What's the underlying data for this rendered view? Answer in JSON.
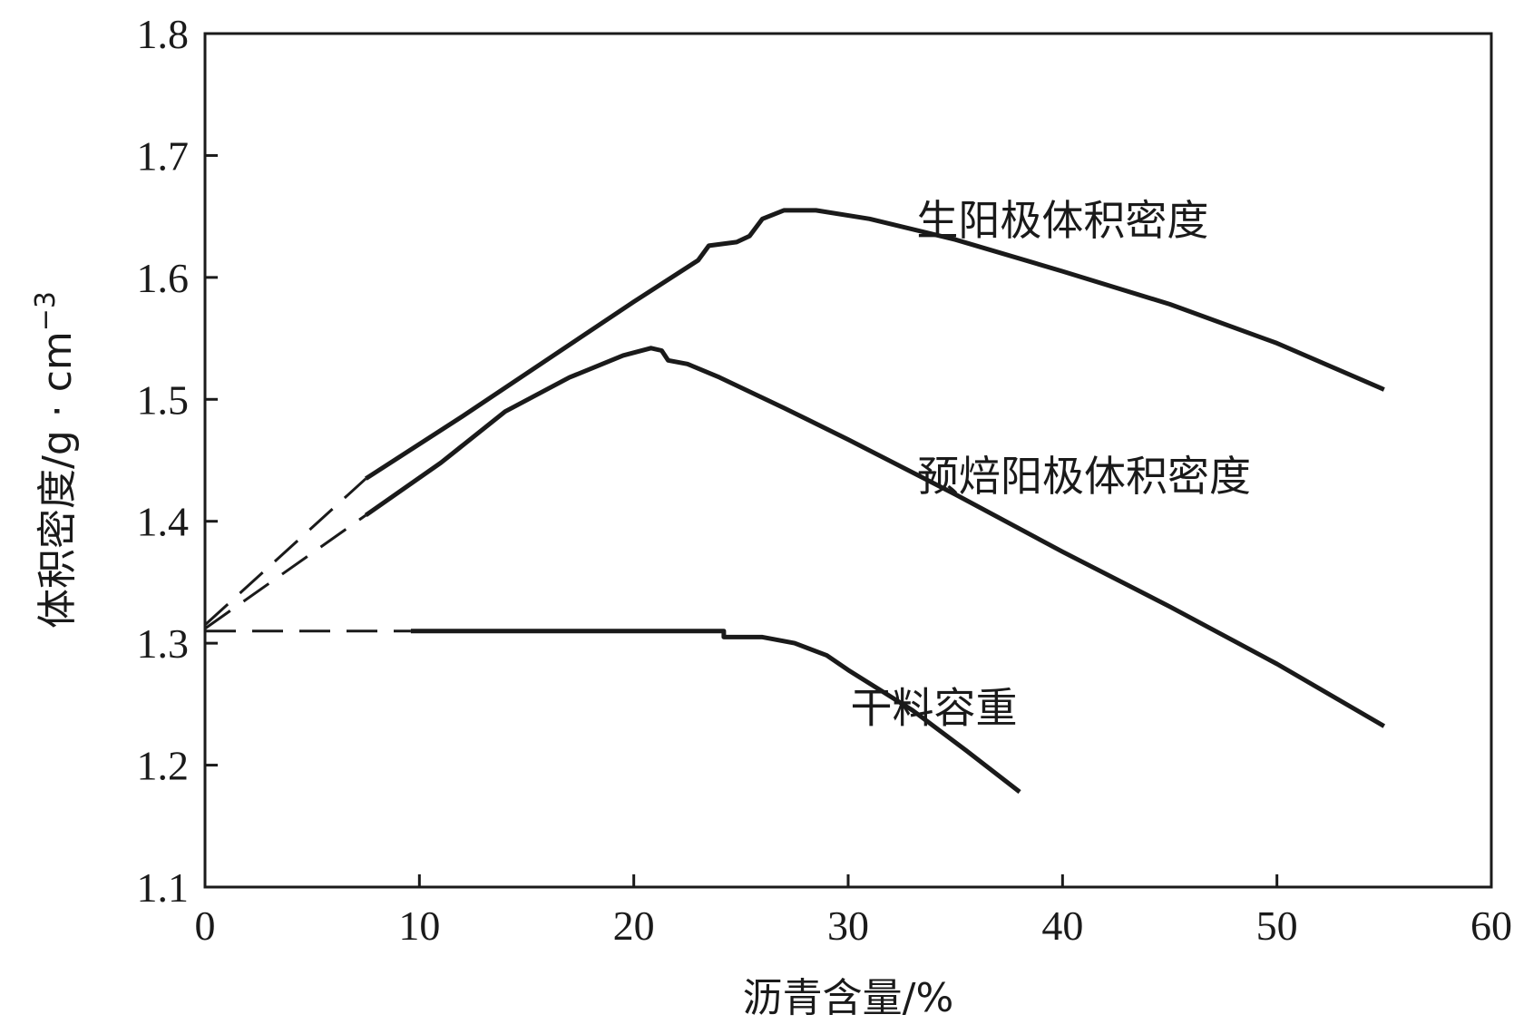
{
  "chart_data": {
    "type": "line",
    "title": "",
    "xlabel": "沥青含量/%",
    "ylabel": "体积密度/g · cm",
    "ylabel_sup": "−3",
    "xlim": [
      0,
      60
    ],
    "ylim": [
      1.1,
      1.8
    ],
    "x_ticks": [
      0,
      10,
      20,
      30,
      40,
      50,
      60
    ],
    "x_tick_labels": [
      "0",
      "10",
      "20",
      "30",
      "40",
      "50",
      "60"
    ],
    "y_ticks": [
      1.1,
      1.2,
      1.3,
      1.4,
      1.5,
      1.6,
      1.7,
      1.8
    ],
    "y_tick_labels": [
      "1.1",
      "1.2",
      "1.3",
      "1.4",
      "1.5",
      "1.6",
      "1.7",
      "1.8"
    ],
    "grid": false,
    "legend": "none",
    "series": [
      {
        "name": "生阳极体积密度",
        "label_at": [
          40,
          1.635
        ],
        "extrapolated": [
          [
            0,
            1.315
          ],
          [
            7.5,
            1.435
          ]
        ],
        "points": [
          [
            7.5,
            1.435
          ],
          [
            12,
            1.486
          ],
          [
            16,
            1.533
          ],
          [
            20,
            1.58
          ],
          [
            23,
            1.614
          ],
          [
            23.5,
            1.626
          ],
          [
            24.8,
            1.629
          ],
          [
            25.4,
            1.634
          ],
          [
            26,
            1.648
          ],
          [
            27,
            1.655
          ],
          [
            28.5,
            1.655
          ],
          [
            31,
            1.648
          ],
          [
            35,
            1.631
          ],
          [
            40,
            1.605
          ],
          [
            45,
            1.578
          ],
          [
            50,
            1.546
          ],
          [
            55,
            1.508
          ]
        ]
      },
      {
        "name": "预焙阳极体积密度",
        "label_at": [
          41,
          1.425
        ],
        "extrapolated": [
          [
            0,
            1.312
          ],
          [
            7.5,
            1.405
          ]
        ],
        "points": [
          [
            7.5,
            1.405
          ],
          [
            11,
            1.448
          ],
          [
            14,
            1.49
          ],
          [
            17,
            1.518
          ],
          [
            19.5,
            1.536
          ],
          [
            20.8,
            1.542
          ],
          [
            21.3,
            1.54
          ],
          [
            21.6,
            1.532
          ],
          [
            22.5,
            1.529
          ],
          [
            24,
            1.518
          ],
          [
            27,
            1.493
          ],
          [
            30,
            1.467
          ],
          [
            35,
            1.422
          ],
          [
            40,
            1.375
          ],
          [
            45,
            1.33
          ],
          [
            50,
            1.283
          ],
          [
            55,
            1.232
          ]
        ]
      },
      {
        "name": "干料容重",
        "label_at": [
          34,
          1.235
        ],
        "extrapolated": [
          [
            0,
            1.31
          ],
          [
            9.6,
            1.31
          ]
        ],
        "points": [
          [
            9.6,
            1.31
          ],
          [
            15,
            1.31
          ],
          [
            20,
            1.31
          ],
          [
            24.2,
            1.31
          ],
          [
            24.2,
            1.305
          ],
          [
            26,
            1.305
          ],
          [
            27.5,
            1.3
          ],
          [
            29,
            1.29
          ],
          [
            30,
            1.278
          ],
          [
            33,
            1.245
          ],
          [
            35.5,
            1.212
          ],
          [
            38,
            1.178
          ]
        ]
      }
    ]
  }
}
